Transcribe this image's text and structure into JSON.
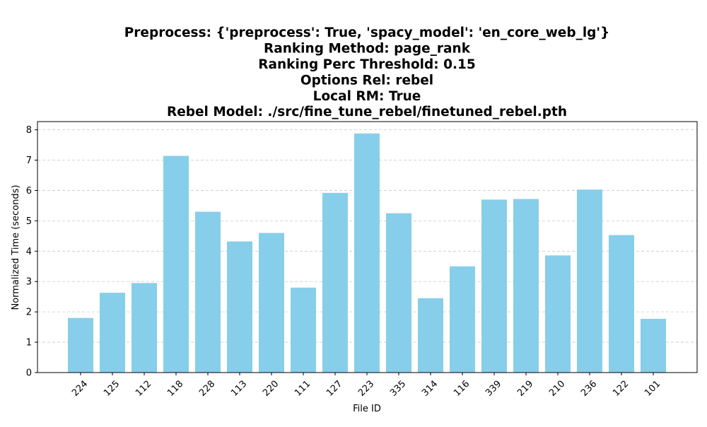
{
  "chart_data": {
    "type": "bar",
    "title_lines": [
      "Preprocess: {'preprocess': True, 'spacy_model': 'en_core_web_lg'}",
      "Ranking Method: page_rank",
      "Ranking Perc Threshold: 0.15",
      "Options Rel: rebel",
      "Local RM: True",
      "Rebel Model: ./src/fine_tune_rebel/finetuned_rebel.pth"
    ],
    "xlabel": "File ID",
    "ylabel": "Normalized Time (seconds)",
    "categories": [
      "224",
      "125",
      "112",
      "118",
      "228",
      "113",
      "220",
      "111",
      "127",
      "223",
      "335",
      "314",
      "116",
      "339",
      "219",
      "210",
      "236",
      "122",
      "101"
    ],
    "values": [
      1.8,
      2.63,
      2.95,
      7.14,
      5.3,
      4.32,
      4.6,
      2.8,
      5.92,
      7.88,
      5.25,
      2.45,
      3.5,
      5.7,
      5.72,
      3.86,
      6.03,
      4.53,
      1.77
    ],
    "ylim": [
      0,
      8.27
    ],
    "yticks": [
      0,
      1,
      2,
      3,
      4,
      5,
      6,
      7,
      8
    ],
    "grid": "y-dashed",
    "bar_color": "#87CEEB",
    "grid_color": "#c8c8c8"
  }
}
